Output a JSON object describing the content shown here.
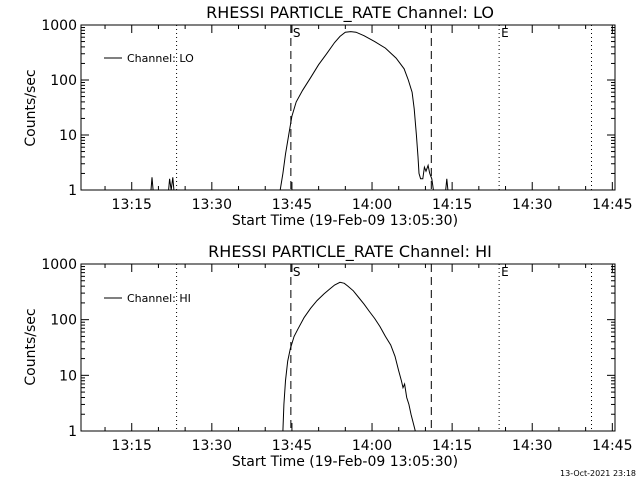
{
  "footer": {
    "timestamp": "13-Oct-2021 23:18"
  },
  "chart_data": [
    {
      "type": "line",
      "title": "RHESSI PARTICLE_RATE Channel: LO",
      "xlabel": "Start Time (19-Feb-09 13:05:30)",
      "ylabel": "Counts/sec",
      "x_unit": "minutes since 13:05:30",
      "xlim": [
        0,
        100
      ],
      "ylim": [
        1,
        1000
      ],
      "yscale": "log",
      "x_ticks": [
        {
          "label": "13:15",
          "value": 9.5
        },
        {
          "label": "13:30",
          "value": 24.5
        },
        {
          "label": "13:45",
          "value": 39.5
        },
        {
          "label": "14:00",
          "value": 54.5
        },
        {
          "label": "14:15",
          "value": 69.5
        },
        {
          "label": "14:30",
          "value": 84.5
        },
        {
          "label": "14:45",
          "value": 99.5
        }
      ],
      "y_ticks": [
        {
          "label": "1",
          "value": 1
        },
        {
          "label": "10",
          "value": 10
        },
        {
          "label": "100",
          "value": 100
        },
        {
          "label": "1000",
          "value": 1000
        }
      ],
      "legend": {
        "label": "Channel: LO",
        "position": "top-left"
      },
      "markers": [
        {
          "label": "S",
          "x": 39.3,
          "style": "dashed"
        },
        {
          "label": "",
          "x": 65.6,
          "style": "dashed"
        },
        {
          "label": "E",
          "x": 78.3,
          "style": "dotted"
        },
        {
          "label": "",
          "x": 17.9,
          "style": "dotted"
        },
        {
          "label": "",
          "x": 95.6,
          "style": "dotted"
        }
      ],
      "series": [
        {
          "name": "Channel: LO",
          "points": [
            [
              0,
              1
            ],
            [
              13.1,
              1
            ],
            [
              13.3,
              1.7
            ],
            [
              13.5,
              1
            ],
            [
              16.4,
              1
            ],
            [
              16.6,
              1.6
            ],
            [
              16.9,
              1
            ],
            [
              17.2,
              1.7
            ],
            [
              17.4,
              1
            ],
            [
              37.3,
              1
            ],
            [
              37.8,
              2
            ],
            [
              38.3,
              4.5
            ],
            [
              38.9,
              10
            ],
            [
              39.5,
              22
            ],
            [
              40.3,
              40
            ],
            [
              41.5,
              65
            ],
            [
              43.0,
              110
            ],
            [
              44.5,
              190
            ],
            [
              46.0,
              300
            ],
            [
              47.5,
              480
            ],
            [
              48.5,
              620
            ],
            [
              49.5,
              740
            ],
            [
              50.5,
              760
            ],
            [
              51.5,
              740
            ],
            [
              53.0,
              640
            ],
            [
              55.0,
              500
            ],
            [
              57.0,
              380
            ],
            [
              59.0,
              250
            ],
            [
              60.5,
              160
            ],
            [
              61.3,
              100
            ],
            [
              62.0,
              60
            ],
            [
              62.4,
              30
            ],
            [
              62.8,
              10
            ],
            [
              63.1,
              4
            ],
            [
              63.3,
              2
            ],
            [
              63.6,
              1.6
            ],
            [
              64.0,
              1.6
            ],
            [
              64.3,
              2.6
            ],
            [
              64.6,
              2.2
            ],
            [
              65.0,
              2.8
            ],
            [
              65.3,
              2
            ],
            [
              65.7,
              1.6
            ],
            [
              66.0,
              1
            ],
            [
              68.3,
              1
            ],
            [
              68.5,
              1.6
            ],
            [
              68.7,
              1
            ],
            [
              100,
              1
            ]
          ]
        }
      ]
    },
    {
      "type": "line",
      "title": "RHESSI PARTICLE_RATE Channel: HI",
      "xlabel": "Start Time (19-Feb-09 13:05:30)",
      "ylabel": "Counts/sec",
      "x_unit": "minutes since 13:05:30",
      "xlim": [
        0,
        100
      ],
      "ylim": [
        1,
        1000
      ],
      "yscale": "log",
      "x_ticks": [
        {
          "label": "13:15",
          "value": 9.5
        },
        {
          "label": "13:30",
          "value": 24.5
        },
        {
          "label": "13:45",
          "value": 39.5
        },
        {
          "label": "14:00",
          "value": 54.5
        },
        {
          "label": "14:15",
          "value": 69.5
        },
        {
          "label": "14:30",
          "value": 84.5
        },
        {
          "label": "14:45",
          "value": 99.5
        }
      ],
      "y_ticks": [
        {
          "label": "1",
          "value": 1
        },
        {
          "label": "10",
          "value": 10
        },
        {
          "label": "100",
          "value": 100
        },
        {
          "label": "1000",
          "value": 1000
        }
      ],
      "legend": {
        "label": "Channel: HI",
        "position": "top-left"
      },
      "markers": [
        {
          "label": "S",
          "x": 39.3,
          "style": "dashed"
        },
        {
          "label": "",
          "x": 65.6,
          "style": "dashed"
        },
        {
          "label": "E",
          "x": 78.3,
          "style": "dotted"
        },
        {
          "label": "",
          "x": 17.9,
          "style": "dotted"
        },
        {
          "label": "",
          "x": 95.6,
          "style": "dotted"
        }
      ],
      "series": [
        {
          "name": "Channel: HI",
          "points": [
            [
              37.8,
              1
            ],
            [
              38.0,
              3
            ],
            [
              38.3,
              8
            ],
            [
              38.7,
              18
            ],
            [
              39.2,
              30
            ],
            [
              39.9,
              50
            ],
            [
              40.7,
              70
            ],
            [
              41.8,
              110
            ],
            [
              43.0,
              160
            ],
            [
              44.2,
              220
            ],
            [
              45.5,
              290
            ],
            [
              46.5,
              350
            ],
            [
              47.5,
              420
            ],
            [
              48.5,
              470
            ],
            [
              49.3,
              450
            ],
            [
              50.0,
              400
            ],
            [
              51.0,
              330
            ],
            [
              52.0,
              250
            ],
            [
              53.0,
              190
            ],
            [
              54.0,
              140
            ],
            [
              55.0,
              105
            ],
            [
              56.0,
              75
            ],
            [
              57.0,
              50
            ],
            [
              58.0,
              35
            ],
            [
              58.8,
              22
            ],
            [
              59.5,
              12
            ],
            [
              60.0,
              8
            ],
            [
              60.3,
              6
            ],
            [
              60.6,
              7
            ],
            [
              61.0,
              4
            ],
            [
              61.4,
              3
            ],
            [
              61.8,
              2
            ],
            [
              62.3,
              1.3
            ],
            [
              62.6,
              1
            ]
          ]
        }
      ]
    }
  ]
}
